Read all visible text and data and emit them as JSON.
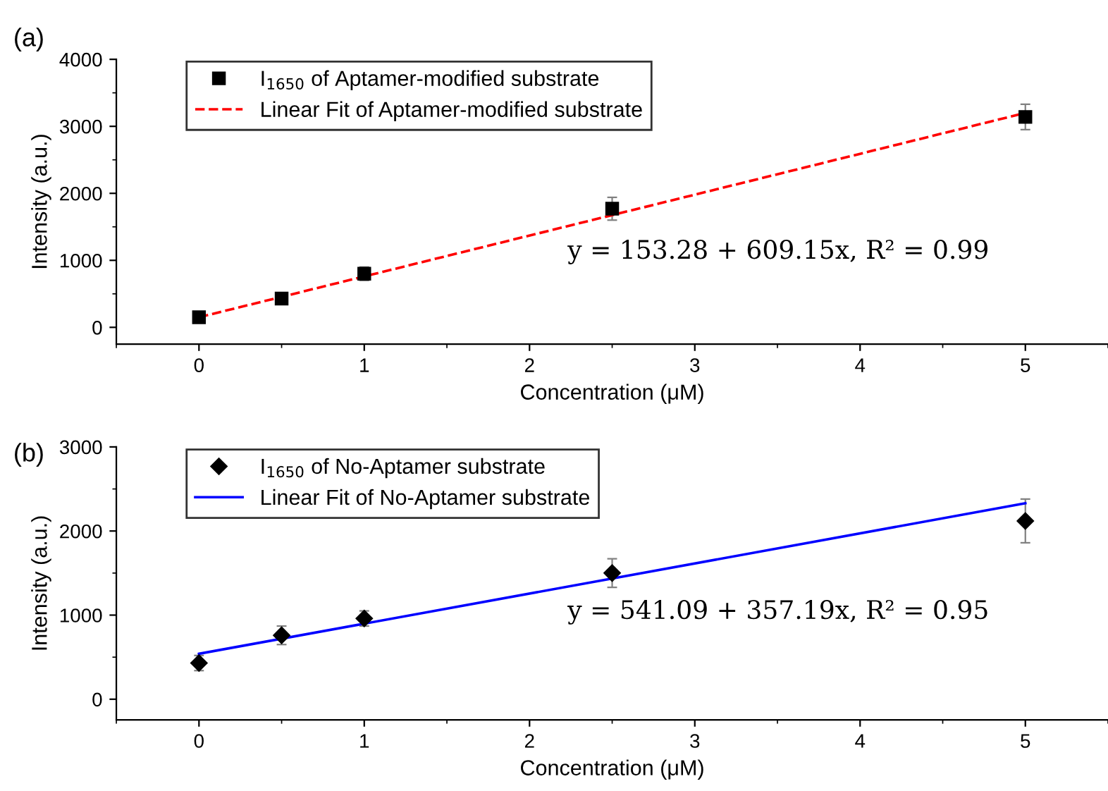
{
  "chart_data": [
    {
      "type": "scatter",
      "title": "(a)",
      "xlabel": "Concentration (μM)",
      "ylabel": "Intensity (a.u.)",
      "xlim": [
        -0.5,
        5.5
      ],
      "xticks": [
        0,
        1,
        2,
        3,
        4,
        5
      ],
      "ylim": [
        -250,
        4000
      ],
      "yticks": [
        0,
        1000,
        2000,
        3000,
        4000
      ],
      "grid": false,
      "legend": "top left",
      "annotations": [
        "y = 153.28 + 609.15x, R² = 0.99"
      ],
      "series": [
        {
          "name": "I$_{1650}$ of Aptamer-modified substrate",
          "marker": "square",
          "color": "#000000",
          "x": [
            0,
            0.5,
            1,
            2.5,
            5
          ],
          "values": [
            150,
            430,
            800,
            1770,
            3140
          ],
          "errors": [
            50,
            40,
            100,
            170,
            190
          ]
        },
        {
          "name": "Linear Fit of Aptamer-modified substrate",
          "type": "line",
          "marker": "none",
          "line_style": "dashed",
          "color": "#ff0000",
          "x": [
            0,
            5
          ],
          "values": [
            150,
            3200
          ]
        }
      ]
    },
    {
      "type": "scatter",
      "title": "(b)",
      "xlabel": "Concentration (μM)",
      "ylabel": "Intensity (a.u.)",
      "xlim": [
        -0.5,
        5.5
      ],
      "xticks": [
        0,
        1,
        2,
        3,
        4,
        5
      ],
      "ylim": [
        -245,
        3000
      ],
      "yticks": [
        0,
        1000,
        2000,
        3000
      ],
      "grid": false,
      "legend": "top left",
      "annotations": [
        "y = 541.09 + 357.19x, R² = 0.95"
      ],
      "series": [
        {
          "name": "I$_{1650}$ of No-Aptamer substrate",
          "marker": "diamond",
          "color": "#000000",
          "x": [
            0,
            0.5,
            1,
            2.5,
            5
          ],
          "values": [
            430,
            760,
            960,
            1500,
            2120
          ],
          "errors": [
            90,
            110,
            90,
            170,
            260
          ]
        },
        {
          "name": "Linear Fit of No-Aptamer substrate",
          "type": "line",
          "marker": "none",
          "line_style": "solid",
          "color": "#0000ff",
          "x": [
            0,
            5
          ],
          "values": [
            540,
            2330
          ]
        }
      ]
    }
  ]
}
